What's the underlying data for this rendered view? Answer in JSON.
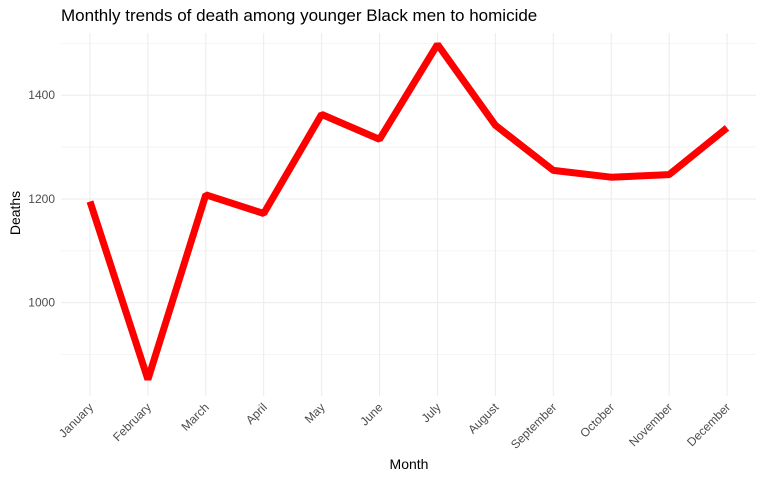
{
  "chart_data": {
    "type": "line",
    "title": "Monthly trends of death among younger Black men to homicide",
    "xlabel": "Month",
    "ylabel": "Deaths",
    "categories": [
      "January",
      "February",
      "March",
      "April",
      "May",
      "June",
      "July",
      "August",
      "September",
      "October",
      "November",
      "December"
    ],
    "series": [
      {
        "values": [
          1195,
          852,
          1208,
          1172,
          1363,
          1315,
          1498,
          1342,
          1255,
          1242,
          1247,
          1337
        ]
      }
    ],
    "ylim": [
      820,
      1520
    ],
    "yticks": [
      1000,
      1200,
      1400
    ],
    "line_color": "#ff0000",
    "grid": true
  }
}
